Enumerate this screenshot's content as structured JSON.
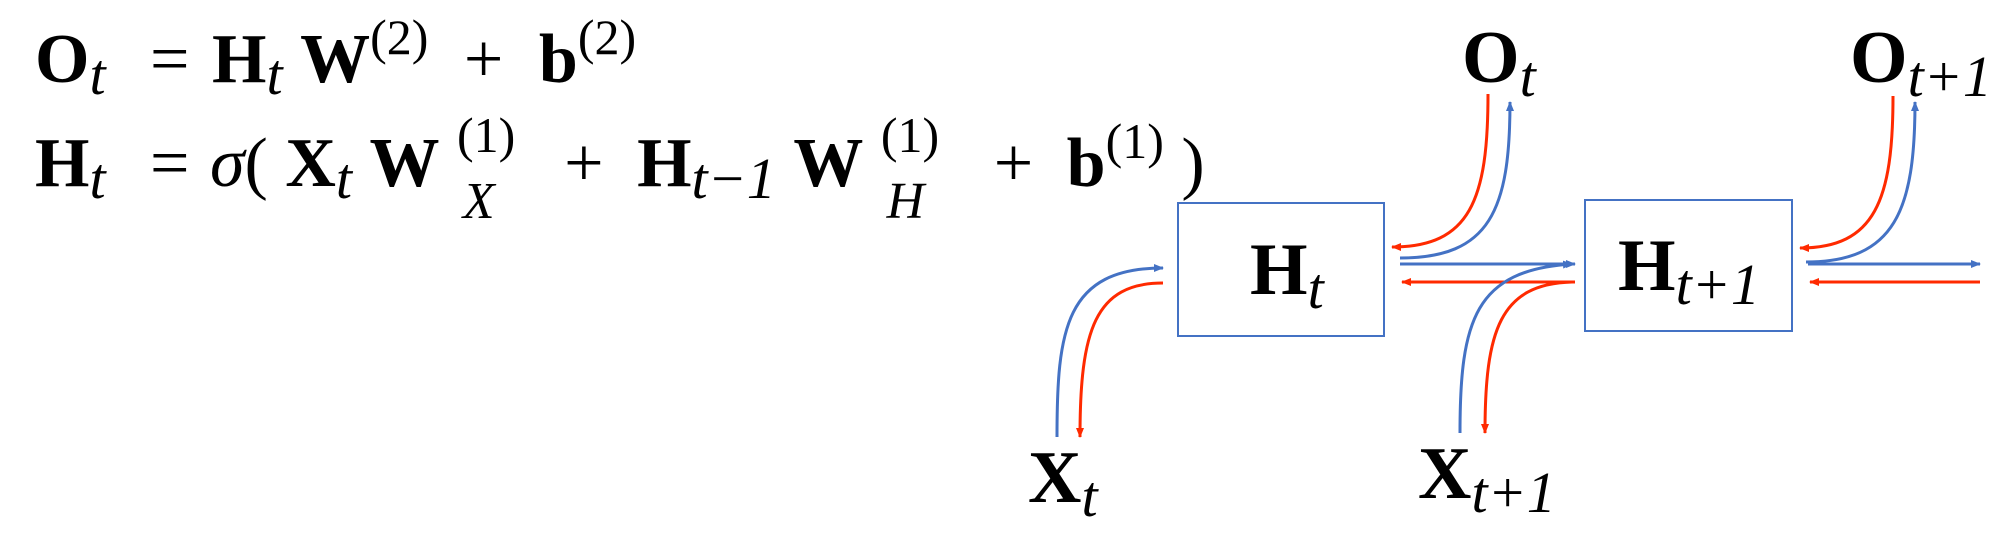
{
  "equations": {
    "line1": {
      "lhs": "O",
      "lhs_sub": "t",
      "eq": "=",
      "t1": "H",
      "t1_sub": "t",
      "t2": "W",
      "t2_sup": "(2)",
      "plus": "+",
      "t3": "b",
      "t3_sup": "(2)"
    },
    "line2": {
      "lhs": "H",
      "lhs_sub": "t",
      "eq": "=",
      "sigma": "σ",
      "lparen": "(",
      "x": "X",
      "x_sub": "t",
      "wx": "W",
      "wx_sup": "(1)",
      "wx_sub": "X",
      "plus1": "+",
      "h": "H",
      "h_sub": "t−1",
      "wh": "W",
      "wh_sup": "(1)",
      "wh_sub": "H",
      "plus2": "+",
      "b": "b",
      "b_sup": "(1)",
      "rparen": ")"
    }
  },
  "diagram": {
    "box1": {
      "main": "H",
      "sub": "t"
    },
    "box2": {
      "main": "H",
      "sub": "t+1"
    },
    "out1": {
      "main": "O",
      "sub": "t"
    },
    "out2": {
      "main": "O",
      "sub": "t+1"
    },
    "in1": {
      "main": "X",
      "sub": "t"
    },
    "in2": {
      "main": "X",
      "sub": "t+1"
    }
  },
  "colors": {
    "forward": "#4472C4",
    "backward": "#FF2A00",
    "box": "#4472C4"
  }
}
